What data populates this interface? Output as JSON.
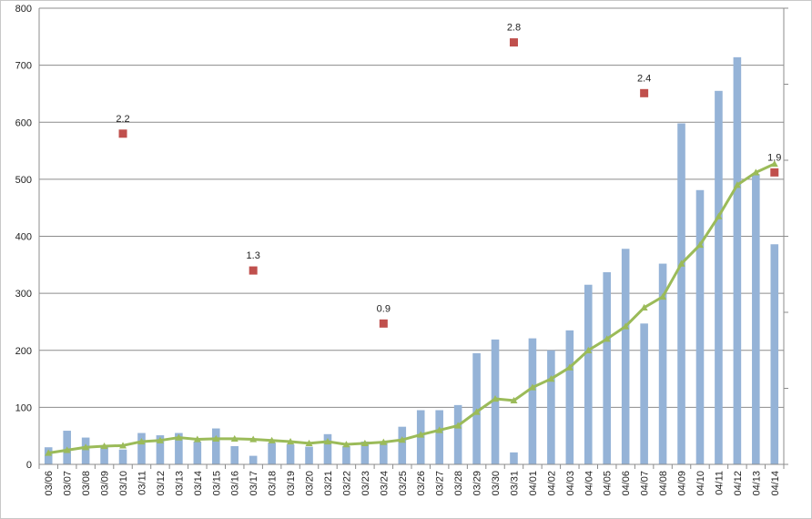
{
  "chart_data": {
    "type": "bar",
    "categories": [
      "03/06",
      "03/07",
      "03/08",
      "03/09",
      "03/10",
      "03/11",
      "03/12",
      "03/13",
      "03/14",
      "03/15",
      "03/16",
      "03/17",
      "03/18",
      "03/19",
      "03/20",
      "03/21",
      "03/22",
      "03/23",
      "03/24",
      "03/25",
      "03/26",
      "03/27",
      "03/28",
      "03/29",
      "03/30",
      "03/31",
      "04/01",
      "04/02",
      "04/03",
      "04/04",
      "04/05",
      "04/06",
      "04/07",
      "04/08",
      "04/09",
      "04/10",
      "04/11",
      "04/12",
      "04/13",
      "04/14"
    ],
    "ylim": [
      0,
      800
    ],
    "y_ticks": [
      "0",
      "100",
      "200",
      "300",
      "400",
      "500",
      "600",
      "700",
      "800"
    ],
    "grid": true,
    "series": [
      {
        "kind": "bar",
        "color": "#95b3d7",
        "values": [
          30,
          59,
          47,
          31,
          26,
          55,
          51,
          55,
          40,
          63,
          32,
          15,
          38,
          35,
          31,
          53,
          32,
          40,
          40,
          66,
          95,
          95,
          104,
          195,
          219,
          21,
          221,
          200,
          235,
          315,
          337,
          378,
          247,
          352,
          598,
          481,
          655,
          714,
          509,
          386
        ]
      },
      {
        "kind": "line",
        "color": "#9bbb59",
        "marker": "triangle",
        "values": [
          20,
          25,
          30,
          32,
          33,
          40,
          42,
          47,
          44,
          45,
          45,
          44,
          42,
          40,
          37,
          40,
          35,
          37,
          39,
          43,
          52,
          60,
          68,
          92,
          115,
          112,
          135,
          150,
          170,
          200,
          220,
          242,
          275,
          294,
          352,
          385,
          435,
          490,
          512,
          527
        ]
      },
      {
        "kind": "points",
        "color": "#c0504d",
        "marker": "square",
        "points": [
          {
            "x": "03/10",
            "y": 580,
            "label": "2.2"
          },
          {
            "x": "03/17",
            "y": 340,
            "label": "1.3"
          },
          {
            "x": "03/24",
            "y": 247,
            "label": "0.9"
          },
          {
            "x": "03/31",
            "y": 740,
            "label": "2.8"
          },
          {
            "x": "04/07",
            "y": 651,
            "label": "2.4"
          },
          {
            "x": "04/14",
            "y": 512,
            "label": "1.9"
          }
        ]
      }
    ]
  }
}
